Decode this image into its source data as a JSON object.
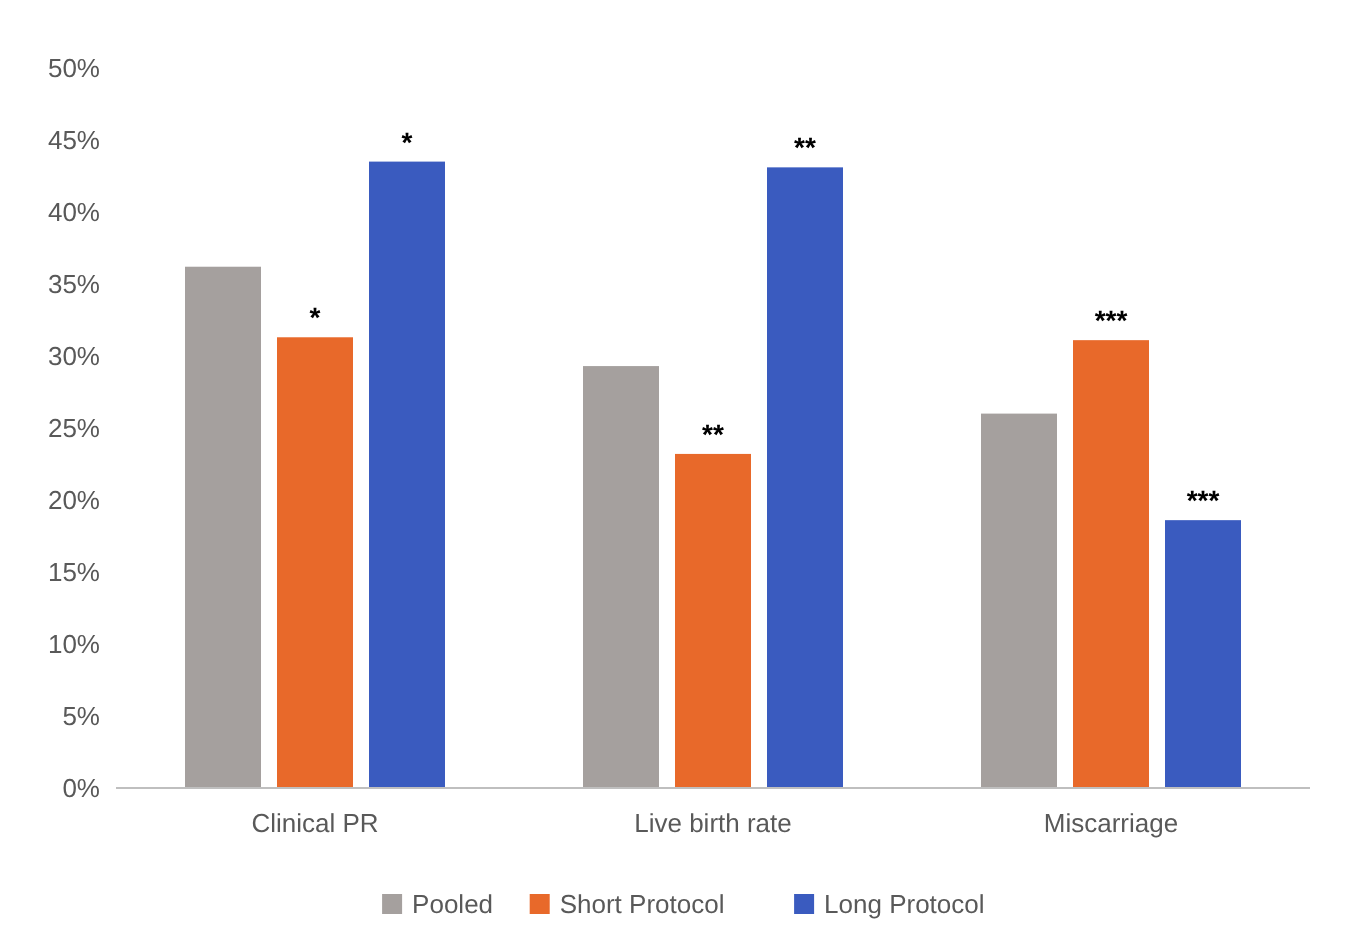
{
  "chart_data": {
    "type": "bar",
    "categories": [
      "Clinical PR",
      "Live birth rate",
      "Miscarriage"
    ],
    "series": [
      {
        "name": "Pooled",
        "color": "#a5a09e",
        "values": [
          36.2,
          29.3,
          26.0
        ]
      },
      {
        "name": "Short Protocol",
        "color": "#e8692a",
        "values": [
          31.3,
          23.2,
          31.1
        ],
        "value_labels": [
          "*",
          "**",
          "***"
        ]
      },
      {
        "name": "Long Protocol",
        "color": "#3a5bbf",
        "values": [
          43.5,
          43.1,
          18.6
        ],
        "value_labels": [
          "*",
          "**",
          "***"
        ]
      }
    ],
    "ylim": [
      0,
      50
    ],
    "yticks": [
      {
        "value": 0,
        "label": "0%"
      },
      {
        "value": 5,
        "label": "5%"
      },
      {
        "value": 10,
        "label": "10%"
      },
      {
        "value": 15,
        "label": "15%"
      },
      {
        "value": 20,
        "label": "20%"
      },
      {
        "value": 25,
        "label": "25%"
      },
      {
        "value": 30,
        "label": "30%"
      },
      {
        "value": 35,
        "label": "35%"
      },
      {
        "value": 40,
        "label": "40%"
      },
      {
        "value": 45,
        "label": "45%"
      },
      {
        "value": 50,
        "label": "50%"
      }
    ],
    "legend": "bottom",
    "grid": false
  }
}
